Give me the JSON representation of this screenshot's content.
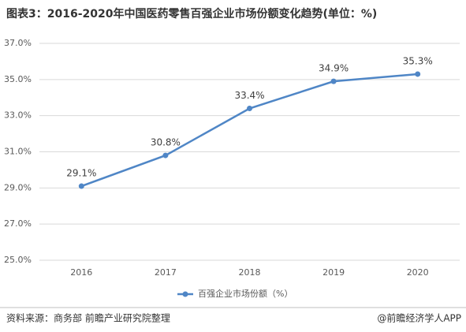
{
  "chart_data": {
    "type": "line",
    "title": "图表3：2016-2020年中国医药零售百强企业市场份额变化趋势(单位：%)",
    "categories": [
      "2016",
      "2017",
      "2018",
      "2019",
      "2020"
    ],
    "series": [
      {
        "name": "百强企业市场份额（%）",
        "color": "#4f86c6",
        "values": [
          29.1,
          30.8,
          33.4,
          34.9,
          35.3
        ],
        "value_labels": [
          "29.1%",
          "30.8%",
          "33.4%",
          "34.9%",
          "35.3%"
        ]
      }
    ],
    "ylim": [
      25,
      37
    ],
    "yticks": [
      {
        "value": 25,
        "label": "25.0%"
      },
      {
        "value": 27,
        "label": "27.0%"
      },
      {
        "value": 29,
        "label": "29.0%"
      },
      {
        "value": 31,
        "label": "31.0%"
      },
      {
        "value": 33,
        "label": "33.0%"
      },
      {
        "value": 35,
        "label": "35.0%"
      },
      {
        "value": 37,
        "label": "37.0%"
      }
    ],
    "grid": true,
    "legend": "bottom",
    "source": "资料来源：商务部 前瞻产业研究院整理",
    "credit": "@前瞻经济学人APP"
  }
}
